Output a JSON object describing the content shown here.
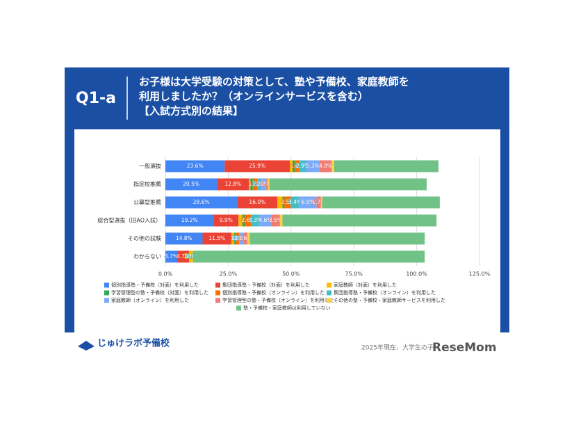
{
  "header": {
    "label": "Q1-a",
    "title_lines": [
      "お子様は大学受験の対策として、塾や予備校、家庭教師を",
      "利用しましたか？（オンラインサービスを含む）",
      "【入試方式別の結果】"
    ]
  },
  "footer": {
    "logo": "じゅけラボ予備校",
    "note": "2025年現在、大学生の子",
    "brand": "ReseMom"
  },
  "chart_data": {
    "type": "stacked-bar-horizontal",
    "categories": [
      "一般選抜",
      "指定校推薦",
      "公募型推薦",
      "総合型選抜（旧AO入試）",
      "その他の試験",
      "わからない"
    ],
    "series": [
      {
        "name": "個別指導塾・予備校（対面）を利用した",
        "color": "#4285f4",
        "values": [
          23.6,
          20.5,
          28.6,
          19.2,
          14.8,
          4.7
        ],
        "value_labels": [
          "23.6%",
          "20.5%",
          "28.6%",
          "19.2%",
          "14.8%",
          "4.7%"
        ]
      },
      {
        "name": "集団指導塾・予備校（対面）を利用した",
        "color": "#ea4335",
        "values": [
          25.9,
          12.8,
          16.0,
          9.9,
          11.5,
          4.7
        ],
        "value_labels": [
          "25.9%",
          "12.8%",
          "16.0%",
          "9.9%",
          "11.5%",
          "4.7%"
        ]
      },
      {
        "name": "家庭教師（対面）を利用した",
        "color": "#fbbc04",
        "values": [
          1.1,
          0.5,
          2.0,
          1.5,
          1.0,
          1.6
        ],
        "value_labels": [
          null,
          null,
          null,
          null,
          null,
          "1.6%"
        ]
      },
      {
        "name": "学習管理型の塾・予備校（対面）を利用した",
        "color": "#34a853",
        "values": [
          0.9,
          1.0,
          0.8,
          1.0,
          0.5,
          0.0
        ],
        "value_labels": [
          null,
          null,
          null,
          null,
          null,
          "0.0%"
        ]
      },
      {
        "name": "個別指導塾・予備校（オンライン）を利用した",
        "color": "#ff6d01",
        "values": [
          1.6,
          1.8,
          2.5,
          2.6,
          1.6,
          0.0
        ],
        "value_labels": [
          "1.6%",
          "1.8%",
          "2.5%",
          "2.6%",
          "1.6%",
          "0.0%"
        ]
      },
      {
        "name": "集団指導塾・予備校（オンライン）を利用した",
        "color": "#46bdc6",
        "values": [
          2.9,
          1.3,
          3.4,
          3.3,
          0.0,
          0.0
        ],
        "value_labels": [
          "2.9%",
          "1.3%",
          "3.4%",
          "3.3%",
          "0.0%",
          "0.0%"
        ]
      },
      {
        "name": "家庭教師（オンライン）を利用した",
        "color": "#7baaf7",
        "values": [
          5.3,
          2.3,
          6.9,
          4.6,
          1.6,
          0.0
        ],
        "value_labels": [
          "5.3%",
          "2.3%",
          "6.9%",
          "4.6%",
          "1.6%",
          null
        ]
      },
      {
        "name": "学習管理型の塾・予備校（オンライン）を利用した",
        "color": "#f07b72",
        "values": [
          4.9,
          0.7,
          1.7,
          3.5,
          1.6,
          0.0
        ],
        "value_labels": [
          "4.9%",
          "0.7%",
          "1.7%",
          "3.5%",
          "1.6%",
          null
        ]
      },
      {
        "name": "その他の塾・予備校・家庭教師サービスを利用した",
        "color": "#fcd04f",
        "values": [
          1.0,
          0.5,
          0.5,
          1.0,
          1.0,
          0.0
        ],
        "value_labels": [
          null,
          null,
          null,
          null,
          null,
          null
        ]
      },
      {
        "name": "塾・予備校・家庭教師は利用していない",
        "color": "#71c287",
        "values": [
          41.5,
          62.6,
          46.8,
          61.3,
          69.6,
          92.2
        ],
        "value_labels": [
          null,
          null,
          null,
          null,
          null,
          null
        ]
      }
    ],
    "xlim": [
      0,
      125
    ],
    "xticks": [
      {
        "value": 0,
        "label": "0.0%"
      },
      {
        "value": 25,
        "label": "25.0%"
      },
      {
        "value": 50,
        "label": "50.0%"
      },
      {
        "value": 75,
        "label": "75.0%"
      },
      {
        "value": 100,
        "label": "100.0%"
      },
      {
        "value": 125,
        "label": "125.0%"
      }
    ],
    "grid": true
  }
}
